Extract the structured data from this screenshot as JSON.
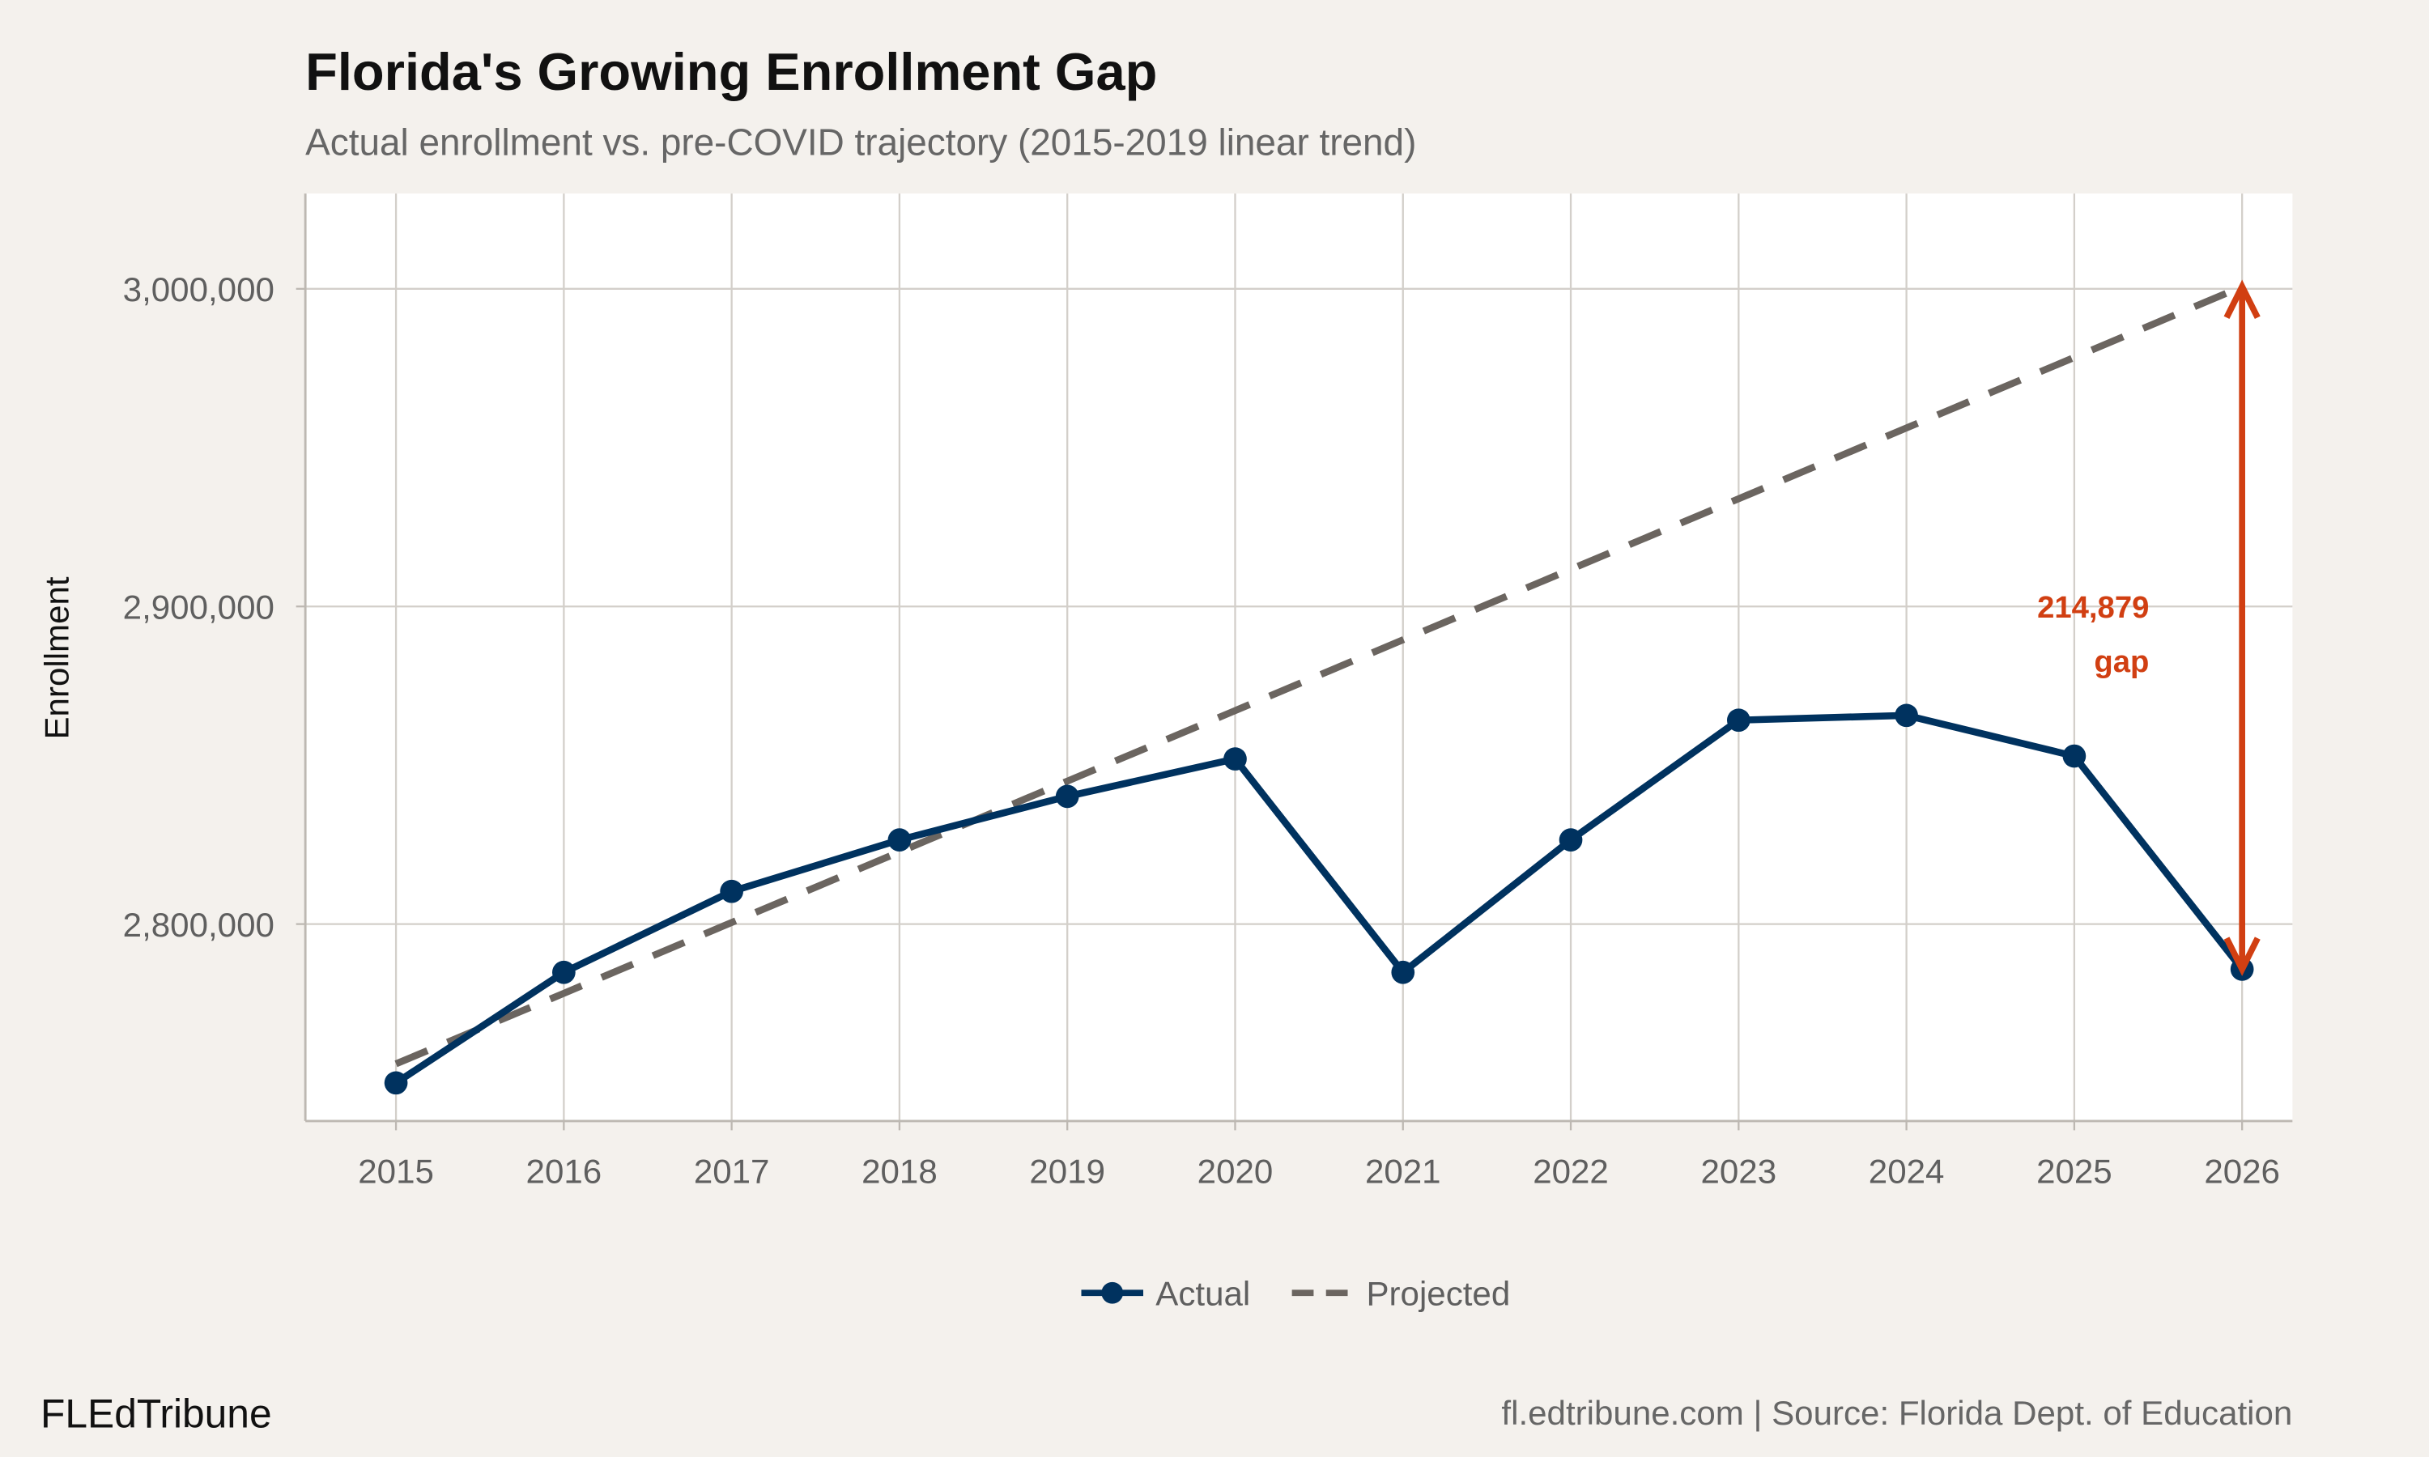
{
  "chart_data": {
    "type": "line",
    "title": "Florida's Growing Enrollment Gap",
    "subtitle": "Actual enrollment vs. pre-COVID trajectory (2015-2019 linear trend)",
    "xlabel": "",
    "ylabel": "Enrollment",
    "x": [
      2015,
      2016,
      2017,
      2018,
      2019,
      2020,
      2021,
      2022,
      2023,
      2024,
      2025,
      2026
    ],
    "x_tick_labels": [
      "2015",
      "2016",
      "2017",
      "2018",
      "2019",
      "2020",
      "2021",
      "2022",
      "2023",
      "2024",
      "2025",
      "2026"
    ],
    "y_ticks": [
      2800000,
      2900000,
      3000000
    ],
    "y_tick_labels": [
      "2,800,000",
      "2,900,000",
      "3,000,000"
    ],
    "ylim": [
      2738000,
      3030000
    ],
    "xlim": [
      2014.46,
      2026.3
    ],
    "grid": true,
    "legend_position": "bottom",
    "series": [
      {
        "name": "Actual",
        "style": "solid line with points",
        "color": "#00325f",
        "values": [
          2750000,
          2784800,
          2810300,
          2826500,
          2840200,
          2852000,
          2784800,
          2826500,
          2864200,
          2865700,
          2852900,
          2785800
        ]
      },
      {
        "name": "Projected",
        "style": "dashed line",
        "color": "#6b6560",
        "values": [
          2756000,
          2778200,
          2800500,
          2822700,
          2845000,
          2867200,
          2889500,
          2911700,
          2933900,
          2956200,
          2978400,
          3000700
        ]
      }
    ],
    "annotation": {
      "line1": "214,879",
      "line2": "gap",
      "color": "#d13f12",
      "year": 2026,
      "from": 2785800,
      "to": 3000700
    }
  },
  "footer": {
    "brand": "FLEdTribune",
    "source": "fl.edtribune.com | Source: Florida Dept. of Education"
  }
}
